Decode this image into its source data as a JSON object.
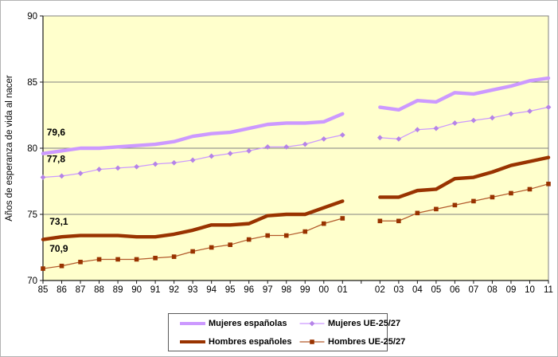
{
  "figure": {
    "plot_background": "#FFFFCC",
    "plot_border_color": "#808080",
    "gridline_color": "#808080",
    "axis_color": "#1a1a1a",
    "text_color": "#000000"
  },
  "chart_data": {
    "type": "line",
    "title": "",
    "xlabel": "",
    "ylabel": "Años de esperanza de vida al nacer",
    "ylim": [
      70,
      90
    ],
    "yticks": [
      "70",
      "75",
      "80",
      "85",
      "90"
    ],
    "gridlines": [
      75,
      80,
      85
    ],
    "grid": "horizontal only",
    "legend_position": "bottom",
    "x_axis_note": "series break (empty slot) between 01 and 02",
    "x_categories": [
      "85",
      "86",
      "87",
      "88",
      "89",
      "90",
      "91",
      "92",
      "93",
      "94",
      "95",
      "96",
      "97",
      "98",
      "99",
      "00",
      "01",
      "",
      "02",
      "03",
      "04",
      "05",
      "06",
      "07",
      "08",
      "09",
      "10",
      "11"
    ],
    "series": [
      {
        "name": "Mujeres españolas",
        "color": "#CC99FF",
        "style": "thick",
        "marker": "none",
        "values": [
          79.6,
          79.8,
          80.0,
          80.0,
          80.1,
          80.2,
          80.3,
          80.5,
          80.9,
          81.1,
          81.2,
          81.5,
          81.8,
          81.9,
          81.9,
          82.0,
          82.6,
          null,
          83.1,
          82.9,
          83.6,
          83.5,
          84.2,
          84.1,
          84.4,
          84.7,
          85.1,
          85.3
        ]
      },
      {
        "name": "Mujeres UE-25/27",
        "color": "#CC99FF",
        "style": "thin",
        "marker": "diamond",
        "marker_color": "#B583E8",
        "values": [
          77.8,
          77.9,
          78.1,
          78.4,
          78.5,
          78.6,
          78.8,
          78.9,
          79.1,
          79.4,
          79.6,
          79.8,
          80.1,
          80.1,
          80.3,
          80.7,
          81.0,
          null,
          80.8,
          80.7,
          81.4,
          81.5,
          81.9,
          82.1,
          82.3,
          82.6,
          82.8,
          83.1
        ]
      },
      {
        "name": "Hombres españoles",
        "color": "#993300",
        "style": "thick",
        "marker": "none",
        "values": [
          73.1,
          73.3,
          73.4,
          73.4,
          73.4,
          73.3,
          73.3,
          73.5,
          73.8,
          74.2,
          74.2,
          74.3,
          74.9,
          75.0,
          75.0,
          75.5,
          76.0,
          null,
          76.3,
          76.3,
          76.8,
          76.9,
          77.7,
          77.8,
          78.2,
          78.7,
          79.0,
          79.3
        ]
      },
      {
        "name": "Hombres UE-25/27",
        "color": "#B35A2B",
        "style": "thin",
        "marker": "square",
        "marker_color": "#993300",
        "values": [
          70.9,
          71.1,
          71.4,
          71.6,
          71.6,
          71.6,
          71.7,
          71.8,
          72.2,
          72.5,
          72.7,
          73.1,
          73.4,
          73.4,
          73.7,
          74.3,
          74.7,
          null,
          74.5,
          74.5,
          75.1,
          75.4,
          75.7,
          76.0,
          76.3,
          76.6,
          76.9,
          77.3
        ]
      }
    ],
    "annotations": [
      {
        "text": "79,6",
        "slot": 0.2,
        "value": 81.2
      },
      {
        "text": "77,8",
        "slot": 0.2,
        "value": 79.2
      },
      {
        "text": "73,1",
        "slot": 0.35,
        "value": 74.45
      },
      {
        "text": "70,9",
        "slot": 0.35,
        "value": 72.4
      }
    ]
  },
  "legend": {
    "row_order": [
      0,
      1,
      2,
      3
    ]
  }
}
